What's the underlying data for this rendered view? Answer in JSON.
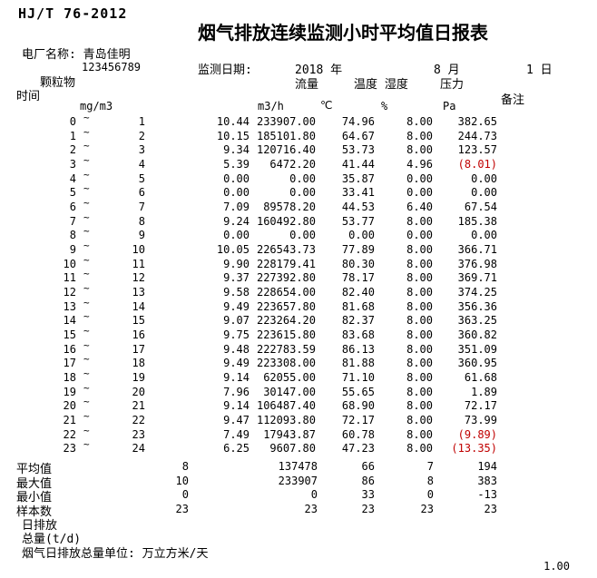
{
  "header": {
    "standard": "HJ/T 76-2012",
    "title": "烟气排放连续监测小时平均值日报表",
    "plant_line": "电厂名称: 青岛佳明",
    "tick": "`",
    "plant_code": "123456789",
    "date_label": "监测日期:",
    "date_year": "2018 年",
    "date_month": "8 月",
    "date_day": "1 日"
  },
  "table": {
    "col_time": "时间",
    "col_dust": "颗粒物",
    "col_flow": "流量",
    "col_temp_hum": "温度 湿度",
    "col_pressure": "压力",
    "col_remark": "备注",
    "unit_dust": "mg/m3",
    "unit_flow": "m3/h",
    "unit_temp": "℃",
    "unit_hum": "%",
    "unit_pressure": "Pa",
    "rows": [
      {
        "from": "0",
        "to": "1",
        "dust": "10.44",
        "flow": "233907.00",
        "temp": "74.96",
        "humidity": "8.00",
        "pressure": "382.65",
        "alarm": false
      },
      {
        "from": "1",
        "to": "2",
        "dust": "10.15",
        "flow": "185101.80",
        "temp": "64.67",
        "humidity": "8.00",
        "pressure": "244.73",
        "alarm": false
      },
      {
        "from": "2",
        "to": "3",
        "dust": "9.34",
        "flow": "120716.40",
        "temp": "53.73",
        "humidity": "8.00",
        "pressure": "123.57",
        "alarm": false
      },
      {
        "from": "3",
        "to": "4",
        "dust": "5.39",
        "flow": "6472.20",
        "temp": "41.44",
        "humidity": "4.96",
        "pressure": "(8.01)",
        "alarm": true
      },
      {
        "from": "4",
        "to": "5",
        "dust": "0.00",
        "flow": "0.00",
        "temp": "35.87",
        "humidity": "0.00",
        "pressure": "0.00",
        "alarm": false
      },
      {
        "from": "5",
        "to": "6",
        "dust": "0.00",
        "flow": "0.00",
        "temp": "33.41",
        "humidity": "0.00",
        "pressure": "0.00",
        "alarm": false
      },
      {
        "from": "6",
        "to": "7",
        "dust": "7.09",
        "flow": "89578.20",
        "temp": "44.53",
        "humidity": "6.40",
        "pressure": "67.54",
        "alarm": false
      },
      {
        "from": "7",
        "to": "8",
        "dust": "9.24",
        "flow": "160492.80",
        "temp": "53.77",
        "humidity": "8.00",
        "pressure": "185.38",
        "alarm": false
      },
      {
        "from": "8",
        "to": "9",
        "dust": "0.00",
        "flow": "0.00",
        "temp": "0.00",
        "humidity": "0.00",
        "pressure": "0.00",
        "alarm": false
      },
      {
        "from": "9",
        "to": "10",
        "dust": "10.05",
        "flow": "226543.73",
        "temp": "77.89",
        "humidity": "8.00",
        "pressure": "366.71",
        "alarm": false
      },
      {
        "from": "10",
        "to": "11",
        "dust": "9.90",
        "flow": "228179.41",
        "temp": "80.30",
        "humidity": "8.00",
        "pressure": "376.98",
        "alarm": false
      },
      {
        "from": "11",
        "to": "12",
        "dust": "9.37",
        "flow": "227392.80",
        "temp": "78.17",
        "humidity": "8.00",
        "pressure": "369.71",
        "alarm": false
      },
      {
        "from": "12",
        "to": "13",
        "dust": "9.58",
        "flow": "228654.00",
        "temp": "82.40",
        "humidity": "8.00",
        "pressure": "374.25",
        "alarm": false
      },
      {
        "from": "13",
        "to": "14",
        "dust": "9.49",
        "flow": "223657.80",
        "temp": "81.68",
        "humidity": "8.00",
        "pressure": "356.36",
        "alarm": false
      },
      {
        "from": "14",
        "to": "15",
        "dust": "9.07",
        "flow": "223264.20",
        "temp": "82.37",
        "humidity": "8.00",
        "pressure": "363.25",
        "alarm": false
      },
      {
        "from": "15",
        "to": "16",
        "dust": "9.75",
        "flow": "223615.80",
        "temp": "83.68",
        "humidity": "8.00",
        "pressure": "360.82",
        "alarm": false
      },
      {
        "from": "16",
        "to": "17",
        "dust": "9.48",
        "flow": "222783.59",
        "temp": "86.13",
        "humidity": "8.00",
        "pressure": "351.09",
        "alarm": false
      },
      {
        "from": "17",
        "to": "18",
        "dust": "9.49",
        "flow": "223308.00",
        "temp": "81.88",
        "humidity": "8.00",
        "pressure": "360.95",
        "alarm": false
      },
      {
        "from": "18",
        "to": "19",
        "dust": "9.14",
        "flow": "62055.00",
        "temp": "71.10",
        "humidity": "8.00",
        "pressure": "61.68",
        "alarm": false
      },
      {
        "from": "19",
        "to": "20",
        "dust": "7.96",
        "flow": "30147.00",
        "temp": "55.65",
        "humidity": "8.00",
        "pressure": "1.89",
        "alarm": false
      },
      {
        "from": "20",
        "to": "21",
        "dust": "9.14",
        "flow": "106487.40",
        "temp": "68.90",
        "humidity": "8.00",
        "pressure": "72.17",
        "alarm": false
      },
      {
        "from": "21",
        "to": "22",
        "dust": "9.47",
        "flow": "112093.80",
        "temp": "72.17",
        "humidity": "8.00",
        "pressure": "73.99",
        "alarm": false
      },
      {
        "from": "22",
        "to": "23",
        "dust": "7.49",
        "flow": "17943.87",
        "temp": "60.78",
        "humidity": "8.00",
        "pressure": "(9.89)",
        "alarm": true
      },
      {
        "from": "23",
        "to": "24",
        "dust": "6.25",
        "flow": "9607.80",
        "temp": "47.23",
        "humidity": "8.00",
        "pressure": "(13.35)",
        "alarm": true
      }
    ],
    "summary": [
      {
        "label": "平均值",
        "dust": "8",
        "flow": "137478",
        "temp": "66",
        "humidity": "7",
        "pressure": "194"
      },
      {
        "label": "最大值",
        "dust": "10",
        "flow": "233907",
        "temp": "86",
        "humidity": "8",
        "pressure": "383"
      },
      {
        "label": "最小值",
        "dust": "0",
        "flow": "0",
        "temp": "33",
        "humidity": "0",
        "pressure": "-13"
      },
      {
        "label": "样本数",
        "dust": "23",
        "flow": "23",
        "temp": "23",
        "humidity": "23",
        "pressure": "23"
      }
    ]
  },
  "footer": {
    "daily_emission": "日排放",
    "total": "总量(t/d)",
    "unit_note": "烟气日排放总量单位: 万立方米/天",
    "page": "1.00"
  },
  "colors": {
    "alarm": "#c00000",
    "text": "#000000",
    "background": "#ffffff"
  }
}
